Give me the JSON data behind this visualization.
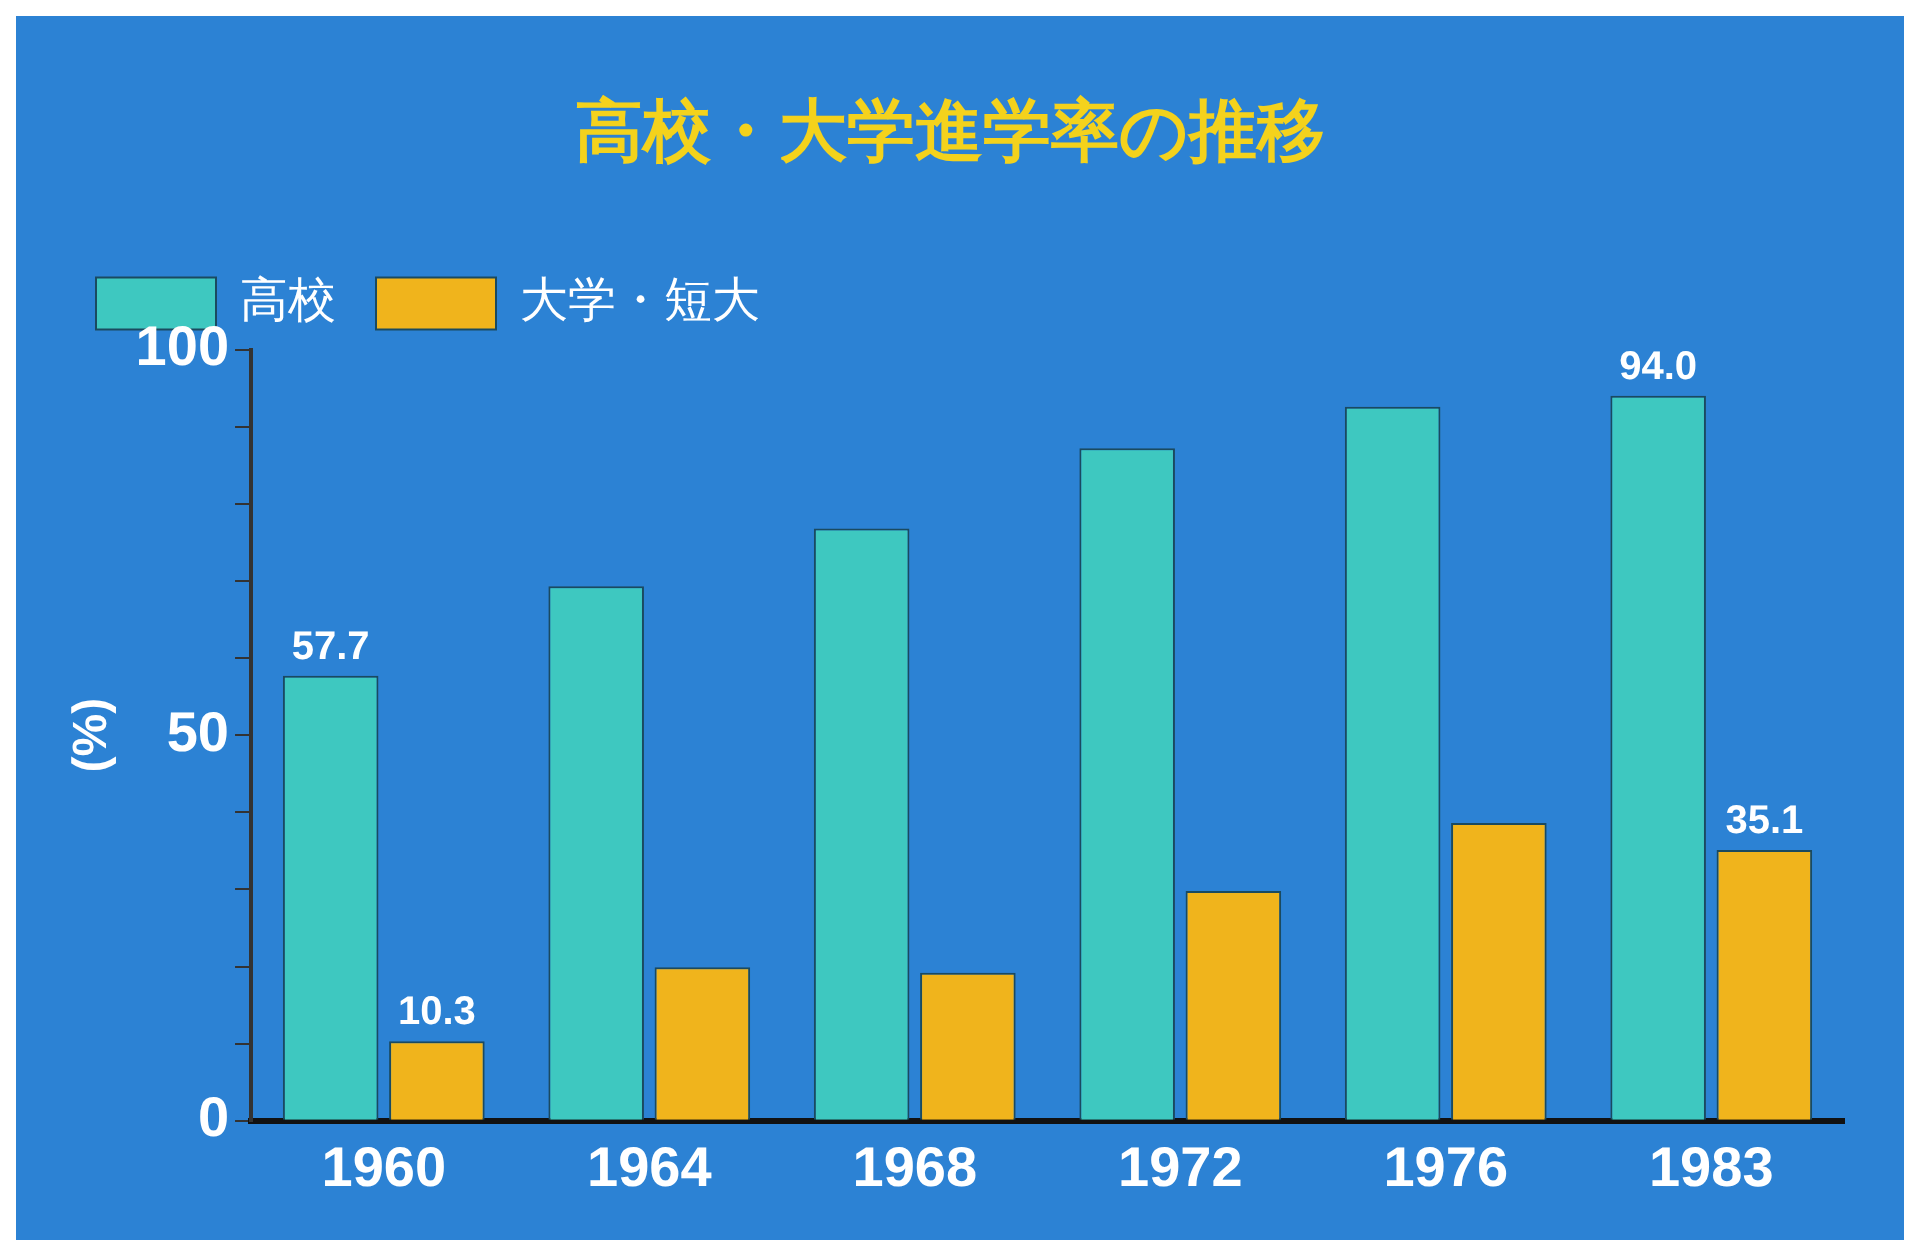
{
  "chart_data": {
    "type": "bar",
    "title": "高校・大学進学率の推移",
    "ylabel": "(%)",
    "categories": [
      "1960",
      "1964",
      "1968",
      "1972",
      "1976",
      "1983"
    ],
    "series": [
      {
        "name": "高校",
        "color": "#3ec8c0",
        "values": [
          57.7,
          69.3,
          76.8,
          87.2,
          92.6,
          94.0
        ],
        "value_labels": [
          "57.7",
          null,
          null,
          null,
          null,
          "94.0"
        ]
      },
      {
        "name": "大学・短大",
        "color": "#f0b41c",
        "values": [
          10.3,
          19.9,
          19.2,
          29.8,
          38.6,
          35.1
        ],
        "value_labels": [
          "10.3",
          null,
          null,
          null,
          null,
          "35.1"
        ]
      }
    ],
    "ylim": [
      0,
      100
    ],
    "yticks": [
      0,
      {
        "value": 10,
        "label": null
      },
      {
        "value": 20,
        "label": null
      },
      {
        "value": 30,
        "label": null
      },
      {
        "value": 40,
        "label": null
      },
      50,
      {
        "value": 60,
        "label": null
      },
      {
        "value": 70,
        "label": null
      },
      {
        "value": 80,
        "label": null
      },
      {
        "value": 90,
        "label": null
      },
      100
    ],
    "grid": false,
    "legend": "top left"
  }
}
